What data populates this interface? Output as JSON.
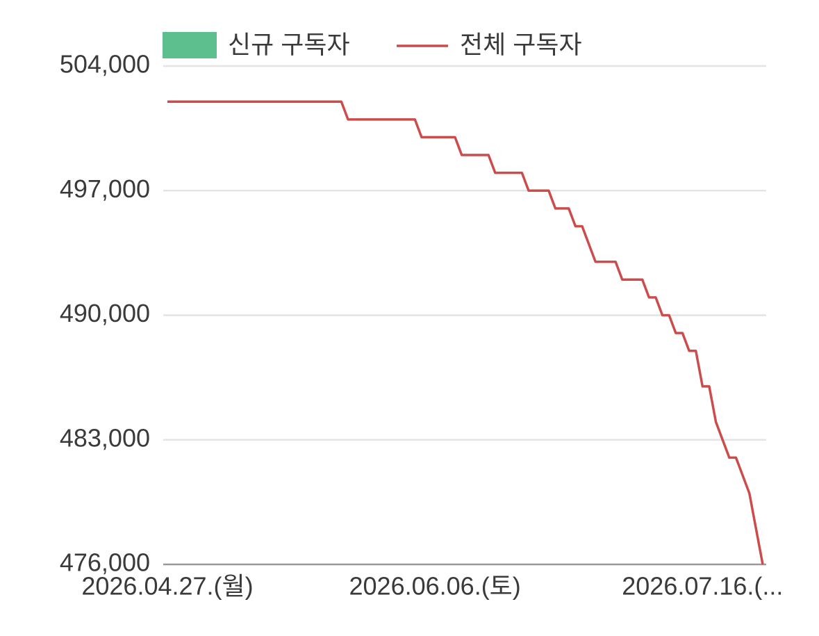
{
  "chart_data": {
    "type": "line",
    "categories": [
      "2026.04.27.(월)",
      null,
      null,
      null,
      null,
      null,
      null,
      null,
      null,
      null,
      null,
      null,
      null,
      null,
      null,
      null,
      null,
      null,
      null,
      null,
      null,
      null,
      null,
      null,
      null,
      null,
      null,
      null,
      null,
      null,
      null,
      null,
      null,
      null,
      null,
      null,
      null,
      null,
      null,
      null,
      "2026.06.06.(토)",
      null,
      null,
      null,
      null,
      null,
      null,
      null,
      null,
      null,
      null,
      null,
      null,
      null,
      null,
      null,
      null,
      null,
      null,
      null,
      null,
      null,
      null,
      null,
      null,
      null,
      null,
      null,
      null,
      null,
      null,
      null,
      null,
      null,
      null,
      null,
      null,
      null,
      null,
      null,
      "2026.07.16.(...",
      null,
      null,
      null,
      null,
      null,
      null,
      null,
      null,
      null
    ],
    "series": [
      {
        "name": "신규 구독자",
        "color": "#5cbf8d",
        "kind": "bar",
        "values": [
          null,
          null,
          null,
          null,
          null,
          null,
          null,
          null,
          null,
          null,
          null,
          null,
          null,
          null,
          null,
          null,
          null,
          null,
          null,
          null,
          null,
          null,
          null,
          null,
          null,
          null,
          null,
          null,
          null,
          null,
          null,
          null,
          null,
          null,
          null,
          null,
          null,
          null,
          null,
          null,
          null,
          null,
          null,
          null,
          null,
          null,
          null,
          null,
          null,
          null,
          null,
          null,
          null,
          null,
          null,
          null,
          null,
          null,
          null,
          null,
          null,
          null,
          null,
          null,
          null,
          null,
          null,
          null,
          null,
          null,
          null,
          null,
          null,
          null,
          null,
          null,
          null,
          null,
          null,
          null,
          null,
          null,
          null,
          null,
          null,
          null,
          null,
          null,
          null,
          null
        ]
      },
      {
        "name": "전체 구독자",
        "color": "#cc4b4b",
        "kind": "line",
        "values": [
          502000,
          502000,
          502000,
          502000,
          502000,
          502000,
          502000,
          502000,
          502000,
          502000,
          502000,
          502000,
          502000,
          502000,
          502000,
          502000,
          502000,
          502000,
          502000,
          502000,
          502000,
          502000,
          502000,
          502000,
          502000,
          502000,
          502000,
          501000,
          501000,
          501000,
          501000,
          501000,
          501000,
          501000,
          501000,
          501000,
          501000,
          501000,
          500000,
          500000,
          500000,
          500000,
          500000,
          500000,
          499000,
          499000,
          499000,
          499000,
          499000,
          498000,
          498000,
          498000,
          498000,
          498000,
          497000,
          497000,
          497000,
          497000,
          496000,
          496000,
          496000,
          495000,
          495000,
          494000,
          493000,
          493000,
          493000,
          493000,
          492000,
          492000,
          492000,
          492000,
          491000,
          491000,
          490000,
          490000,
          489000,
          489000,
          488000,
          488000,
          486000,
          486000,
          484000,
          483000,
          482000,
          482000,
          481000,
          480000,
          478000,
          476000
        ]
      }
    ],
    "ylim": [
      476000,
      504000
    ],
    "yticks": [
      {
        "value": 476000,
        "label": "476,000"
      },
      {
        "value": 483000,
        "label": "483,000"
      },
      {
        "value": 490000,
        "label": "490,000"
      },
      {
        "value": 497000,
        "label": "497,000"
      },
      {
        "value": 504000,
        "label": "504,000"
      }
    ],
    "grid": true
  }
}
